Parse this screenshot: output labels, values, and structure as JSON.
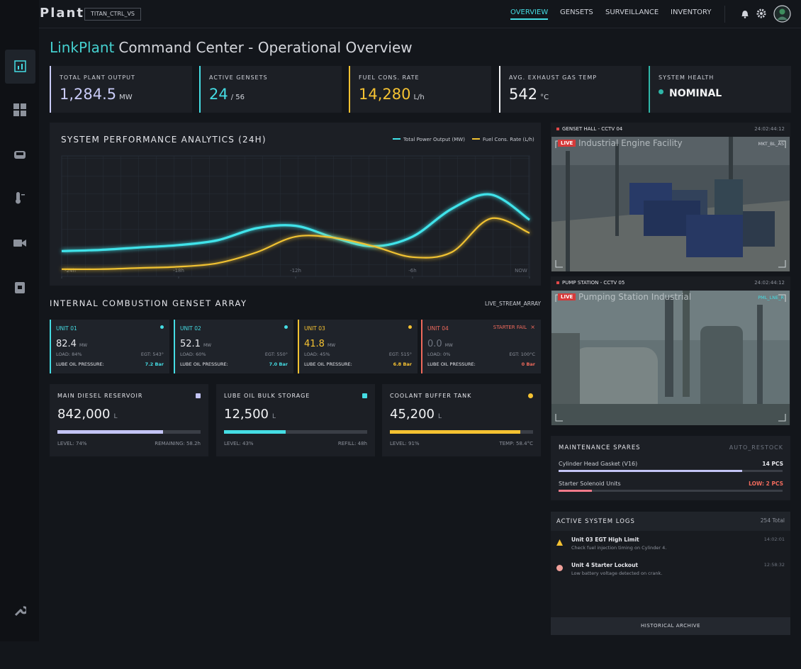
{
  "nav": {
    "brand": "Plant",
    "badge": "TITAN_CTRL_VS",
    "links": [
      "OVERVIEW",
      "GENSETS",
      "SURVEILLANCE",
      "INVENTORY"
    ]
  },
  "header": {
    "title_accent": "LinkPlant",
    "title": "Command Center - Operational Overview"
  },
  "kpis": [
    {
      "label": "TOTAL PLANT OUTPUT",
      "value": "1,284.5",
      "unit": "MW",
      "color": "#c9cbf7"
    },
    {
      "label": "ACTIVE GENSETS",
      "value": "24",
      "unit": "/ 56",
      "color": "#45dde4"
    },
    {
      "label": "FUEL CONS. RATE",
      "value": "14,280",
      "unit": "L/h",
      "color": "#f5c232"
    },
    {
      "label": "AVG. EXHAUST GAS TEMP",
      "value": "542",
      "unit": "°C",
      "color": "#f2f3f5"
    },
    {
      "label": "SYSTEM HEALTH",
      "value": "NOMINAL",
      "color": "#2fb6a8"
    }
  ],
  "chart_data": {
    "type": "line",
    "title": "SYSTEM PERFORMANCE ANALYTICS (24H)",
    "x": [
      -24,
      -22,
      -20,
      -18,
      -16,
      -14,
      -12,
      -10,
      -8,
      -6,
      -4,
      -2,
      0
    ],
    "xlim": [
      -24,
      0
    ],
    "xticks": [
      {
        "value": -24,
        "label": "-24h"
      },
      {
        "value": -18,
        "label": "-18h"
      },
      {
        "value": -12,
        "label": "-12h"
      },
      {
        "value": -6,
        "label": "-6h"
      },
      {
        "value": 0,
        "label": "NOW"
      }
    ],
    "ylim": [
      0,
      100
    ],
    "grid": true,
    "series": [
      {
        "name": "Total Power Output (MW)",
        "color": "#3fe3ea",
        "values": [
          21,
          22,
          24,
          26,
          30,
          40,
          42,
          32,
          25,
          33,
          56,
          68,
          47
        ]
      },
      {
        "name": "Fuel Cons. Rate (L/h)",
        "color": "#f1c232",
        "values": [
          6,
          6,
          7,
          8,
          11,
          20,
          33,
          32,
          25,
          16,
          20,
          48,
          36
        ]
      }
    ]
  },
  "gensets": {
    "title": "INTERNAL COMBUSTION GENSET ARRAY",
    "tag": "LIVE_STREAM_ARRAY",
    "units": [
      {
        "name": "UNIT 01",
        "value": "82.4",
        "unit": "MW",
        "load": "LOAD: 84%",
        "egt": "EGT: 543°",
        "pressure_label": "LUBE OIL PRESSURE:",
        "pressure": "7.2 Bar",
        "color": "#45dde4"
      },
      {
        "name": "UNIT 02",
        "value": "52.1",
        "unit": "MW",
        "load": "LOAD: 60%",
        "egt": "EGT: 550°",
        "pressure_label": "LUBE OIL PRESSURE:",
        "pressure": "7.0 Bar",
        "color": "#45dde4"
      },
      {
        "name": "UNIT 03",
        "value": "41.8",
        "unit": "MW",
        "load": "LOAD: 45%",
        "egt": "EGT: 515°",
        "pressure_label": "LUBE OIL PRESSURE:",
        "pressure": "6.8 Bar",
        "color": "#f5c232"
      },
      {
        "name": "UNIT 04",
        "value": "0.0",
        "unit": "MW",
        "load": "LOAD: 0%",
        "egt": "EGT: 100°C",
        "pressure_label": "LUBE OIL PRESSURE:",
        "pressure": "0 Bar",
        "color": "#f06a5c",
        "status": "STARTER FAIL"
      }
    ]
  },
  "tanks": [
    {
      "name": "MAIN DIESEL RESERVOIR",
      "value": "842,000",
      "unit": "L",
      "level": 74,
      "level_label": "LEVEL: 74%",
      "note": "REMAINING: 58.2h",
      "color": "#c3c4f5"
    },
    {
      "name": "LUBE OIL BULK STORAGE",
      "value": "12,500",
      "unit": "L",
      "level": 43,
      "level_label": "LEVEL: 43%",
      "note": "REFILL: 48h",
      "color": "#45dde4"
    },
    {
      "name": "COOLANT BUFFER TANK",
      "value": "45,200",
      "unit": "L",
      "level": 91,
      "level_label": "LEVEL: 91%",
      "note": "TEMP: 58.4°C",
      "color": "#f5c232"
    }
  ],
  "cameras": [
    {
      "title": "GENSET HALL - CCTV 04",
      "time": "24:02:44:12",
      "live": "LIVE",
      "caption": "Industrial Engine Facility",
      "code": "MKT_BL_AS"
    },
    {
      "title": "PUMP STATION - CCTV 05",
      "time": "24:02:44:12",
      "live": "LIVE",
      "caption": "Pumping Station Industrial",
      "code": "PML_LNE_R"
    }
  ],
  "spares": {
    "title": "MAINTENANCE SPARES",
    "tag": "AUTO_RESTOCK",
    "items": [
      {
        "name": "Cylinder Head Gasket (V16)",
        "stock": "14 PCS",
        "level": 82,
        "color": "#c3c4f5",
        "text_color": "#e6e7ec"
      },
      {
        "name": "Starter Solenoid Units",
        "stock": "LOW: 2 PCS",
        "level": 15,
        "color": "#f07a8a",
        "text_color": "#f06a5c"
      }
    ]
  },
  "logs": {
    "title": "ACTIVE SYSTEM LOGS",
    "count": "254 Total",
    "entries": [
      {
        "title": "Unit 03 EGT High Limit",
        "detail": "Check fuel injection timing on Cylinder 4.",
        "time": "14:02:01",
        "color": "#f5c232"
      },
      {
        "title": "Unit 4 Starter Lockout",
        "detail": "Low battery voltage detected on crank.",
        "time": "12:58:32",
        "color": "#f0a09a"
      }
    ],
    "archive": "HISTORICAL ARCHIVE"
  }
}
